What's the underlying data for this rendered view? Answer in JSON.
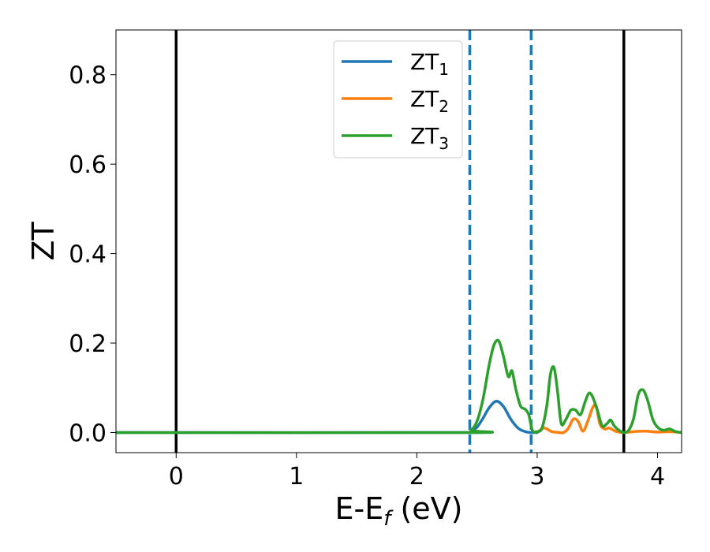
{
  "chart_data": {
    "type": "line",
    "xlabel": "E-E",
    "xlabel_sub": "f",
    "xlabel_unit": " (eV)",
    "ylabel": "ZT",
    "xlim": [
      -0.5,
      4.2
    ],
    "ylim": [
      -0.045,
      0.9
    ],
    "grid": false,
    "legend_placement": "top-center",
    "x_ticks": [
      0,
      1,
      2,
      3,
      4
    ],
    "x_tick_labels": [
      "0",
      "1",
      "2",
      "3",
      "4"
    ],
    "y_ticks": [
      0.0,
      0.2,
      0.4,
      0.6,
      0.8
    ],
    "y_tick_labels": [
      "0.0",
      "0.2",
      "0.4",
      "0.6",
      "0.8"
    ],
    "vertical_lines": [
      {
        "x": 0.0,
        "style": "solid",
        "color": "#000000"
      },
      {
        "x": 3.72,
        "style": "solid",
        "color": "#000000"
      },
      {
        "x": 2.44,
        "style": "dashed",
        "color": "#1f77b4"
      },
      {
        "x": 2.95,
        "style": "dashed",
        "color": "#1f77b4"
      }
    ],
    "series": [
      {
        "name": "ZT",
        "name_sub": "1",
        "color": "#1f77b4",
        "x": [
          -0.5,
          2.4,
          2.45,
          2.5,
          2.55,
          2.6,
          2.66,
          2.72,
          2.78,
          2.84,
          2.9,
          2.95,
          3.0
        ],
        "y": [
          0.0,
          0.0,
          0.003,
          0.012,
          0.032,
          0.055,
          0.07,
          0.058,
          0.03,
          0.01,
          0.002,
          0.0,
          0.0
        ]
      },
      {
        "name": "ZT",
        "name_sub": "2",
        "color": "#ff7f0e",
        "x": [
          3.0,
          3.05,
          3.08,
          3.12,
          3.18,
          3.22,
          3.26,
          3.3,
          3.34,
          3.38,
          3.42,
          3.46,
          3.49,
          3.52,
          3.56,
          3.6,
          3.65,
          3.72,
          3.8,
          3.9,
          4.0,
          4.1,
          4.2
        ],
        "y": [
          0.0,
          0.01,
          0.008,
          0.002,
          0.0,
          0.0,
          0.01,
          0.03,
          0.025,
          0.003,
          0.025,
          0.055,
          0.06,
          0.02,
          0.008,
          0.01,
          0.003,
          0.0,
          0.002,
          0.003,
          0.001,
          0.002,
          0.0
        ]
      },
      {
        "name": "ZT",
        "name_sub": "3",
        "color": "#2ca02c",
        "x": [
          -0.5,
          2.4,
          2.45,
          2.5,
          2.55,
          2.6,
          2.64,
          2.68,
          2.72,
          2.76,
          2.79,
          2.82,
          2.86,
          2.9,
          2.93,
          2.96,
          3.0,
          3.04,
          3.08,
          3.11,
          3.14,
          3.17,
          3.2,
          3.24,
          3.28,
          3.32,
          3.36,
          3.4,
          3.43,
          3.46,
          3.5,
          3.54,
          3.58,
          3.61,
          3.64,
          3.68,
          3.72,
          3.76,
          3.8,
          3.84,
          3.88,
          3.92,
          3.96,
          4.0,
          4.05,
          4.1,
          4.15,
          4.2
        ],
        "y": [
          0.0,
          0.0,
          0.005,
          0.025,
          0.075,
          0.15,
          0.195,
          0.205,
          0.17,
          0.125,
          0.138,
          0.1,
          0.06,
          0.052,
          0.04,
          0.005,
          0.002,
          0.01,
          0.06,
          0.13,
          0.145,
          0.09,
          0.02,
          0.03,
          0.05,
          0.05,
          0.04,
          0.07,
          0.088,
          0.08,
          0.05,
          0.015,
          0.02,
          0.028,
          0.015,
          0.005,
          0.0,
          0.005,
          0.03,
          0.085,
          0.095,
          0.07,
          0.03,
          0.012,
          0.005,
          0.008,
          0.002,
          0.0
        ]
      }
    ]
  }
}
